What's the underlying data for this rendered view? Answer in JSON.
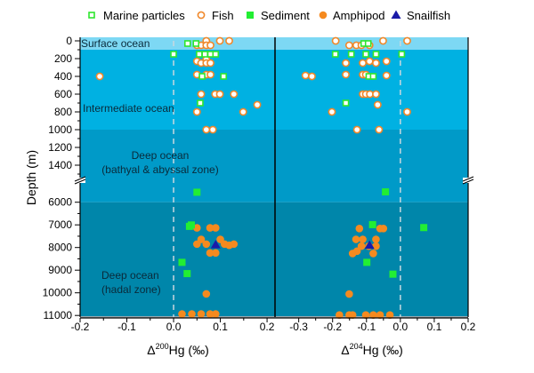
{
  "chart_data": {
    "type": "scatter",
    "legend": {
      "placement": "top",
      "entries": [
        {
          "key": "marine_particles",
          "label": "Marine particles",
          "marker": "hollow-square",
          "color": "#2ee62e"
        },
        {
          "key": "fish",
          "label": "Fish",
          "marker": "hollow-circle",
          "color": "#f0882a"
        },
        {
          "key": "sediment",
          "label": "Sediment",
          "marker": "filled-square",
          "color": "#22ee33"
        },
        {
          "key": "amphipod",
          "label": "Amphipod",
          "marker": "filled-circle",
          "color": "#f58a1f"
        },
        {
          "key": "snailfish",
          "label": "Snailfish",
          "marker": "filled-triangle",
          "color": "#1a1aa8"
        }
      ]
    },
    "ylabel": "Depth (m)",
    "y_axis": {
      "inverted": true,
      "broken": true,
      "upper_segment": [
        0,
        1500
      ],
      "lower_segment": [
        5500,
        11000
      ],
      "tick_labels_upper": [
        "0",
        "200",
        "400",
        "600",
        "800",
        "1000",
        "1200",
        "1400"
      ],
      "tick_labels_lower": [
        "6000",
        "7000",
        "8000",
        "9000",
        "10000",
        "11000"
      ]
    },
    "zones": [
      {
        "label": "Surface ocean",
        "range": [
          0,
          100
        ],
        "color": "#7dd8f4"
      },
      {
        "label": "Intermediate ocean",
        "range": [
          100,
          1000
        ],
        "color": "#00b1e2"
      },
      {
        "label": "Deep ocean",
        "label2": "(bathyal & abyssal zone)",
        "range": [
          1000,
          6000
        ],
        "color": "#009ac8"
      },
      {
        "label": "Deep ocean",
        "label2": "(hadal zone)",
        "range": [
          6000,
          11000
        ],
        "color": "#0086aa"
      }
    ],
    "panels": [
      {
        "xlabel_symbol": "Δ",
        "xlabel_sup": "200",
        "xlabel_rest": "Hg (‰)",
        "xlim": [
          -0.2,
          0.217
        ],
        "xticks": [
          -0.2,
          -0.1,
          0.0,
          0.1,
          0.2
        ],
        "xtick_labels": [
          "-0.2",
          "-0.1",
          "0.0",
          "0.1",
          "0.2"
        ],
        "reference_line": 0,
        "series": {
          "marine_particles": [
            [
              0.03,
              30
            ],
            [
              0.048,
              30
            ],
            [
              0.0,
              150
            ],
            [
              0.055,
              150
            ],
            [
              0.067,
              150
            ],
            [
              0.079,
              150
            ],
            [
              0.09,
              150
            ],
            [
              0.061,
              400
            ],
            [
              0.107,
              400
            ],
            [
              0.057,
              700
            ]
          ],
          "fish": [
            [
              0.07,
              0
            ],
            [
              0.099,
              0
            ],
            [
              0.119,
              0
            ],
            [
              0.05,
              50
            ],
            [
              0.059,
              50
            ],
            [
              0.07,
              50
            ],
            [
              0.079,
              50
            ],
            [
              0.05,
              230
            ],
            [
              0.07,
              210
            ],
            [
              0.059,
              250
            ],
            [
              0.07,
              250
            ],
            [
              0.079,
              250
            ],
            [
              -0.158,
              400
            ],
            [
              0.05,
              380
            ],
            [
              0.07,
              380
            ],
            [
              0.079,
              380
            ],
            [
              0.059,
              600
            ],
            [
              0.089,
              600
            ],
            [
              0.099,
              600
            ],
            [
              0.129,
              600
            ],
            [
              0.179,
              720
            ],
            [
              0.05,
              800
            ],
            [
              0.149,
              800
            ],
            [
              0.07,
              1000
            ],
            [
              0.084,
              1000
            ]
          ],
          "sediment": [
            [
              0.05,
              5560
            ],
            [
              0.034,
              7066
            ],
            [
              0.038,
              7004
            ],
            [
              0.018,
              8656
            ],
            [
              0.029,
              9152
            ]
          ],
          "amphipod": [
            [
              0.05,
              7133
            ],
            [
              0.078,
              7133
            ],
            [
              0.09,
              7133
            ],
            [
              0.059,
              7640
            ],
            [
              0.1,
              7640
            ],
            [
              0.05,
              7850
            ],
            [
              0.07,
              7850
            ],
            [
              0.109,
              7850
            ],
            [
              0.119,
              7900
            ],
            [
              0.129,
              7850
            ],
            [
              0.078,
              8240
            ],
            [
              0.09,
              8240
            ],
            [
              0.07,
              10050
            ],
            [
              0.018,
              10935
            ],
            [
              0.039,
              10935
            ],
            [
              0.059,
              10935
            ],
            [
              0.078,
              10935
            ],
            [
              0.09,
              10935
            ]
          ],
          "snailfish": [
            [
              0.09,
              7880
            ]
          ]
        }
      },
      {
        "xlabel_symbol": "Δ",
        "xlabel_sup": "204",
        "xlabel_rest": "Hg (‰)",
        "xlim": [
          -0.37,
          0.2
        ],
        "xticks": [
          -0.3,
          -0.2,
          -0.1,
          0.0,
          0.1,
          0.2
        ],
        "xtick_labels": [
          "-0.3",
          "-0.2",
          "-0.1",
          "0.0",
          "0.1",
          "0.2"
        ],
        "reference_line": 0,
        "series": {
          "marine_particles": [
            [
              -0.108,
              30
            ],
            [
              -0.095,
              30
            ],
            [
              -0.192,
              150
            ],
            [
              -0.145,
              150
            ],
            [
              -0.102,
              150
            ],
            [
              -0.072,
              150
            ],
            [
              0.004,
              150
            ],
            [
              -0.093,
              400
            ],
            [
              -0.08,
              400
            ],
            [
              -0.161,
              700
            ]
          ],
          "fish": [
            [
              -0.191,
              0
            ],
            [
              -0.051,
              0
            ],
            [
              0.02,
              0
            ],
            [
              -0.151,
              50
            ],
            [
              -0.13,
              50
            ],
            [
              -0.115,
              50
            ],
            [
              -0.091,
              50
            ],
            [
              -0.161,
              250
            ],
            [
              -0.111,
              250
            ],
            [
              -0.091,
              230
            ],
            [
              -0.072,
              250
            ],
            [
              -0.041,
              230
            ],
            [
              -0.28,
              390
            ],
            [
              -0.261,
              400
            ],
            [
              -0.161,
              380
            ],
            [
              -0.111,
              380
            ],
            [
              -0.102,
              380
            ],
            [
              -0.041,
              390
            ],
            [
              -0.111,
              600
            ],
            [
              -0.102,
              600
            ],
            [
              -0.09,
              600
            ],
            [
              -0.072,
              600
            ],
            [
              -0.067,
              720
            ],
            [
              -0.202,
              800
            ],
            [
              0.02,
              800
            ],
            [
              -0.128,
              1000
            ],
            [
              -0.063,
              1000
            ]
          ],
          "sediment": [
            [
              -0.044,
              5543
            ],
            [
              -0.082,
              6990
            ],
            [
              0.069,
              7120
            ],
            [
              -0.099,
              8656
            ],
            [
              -0.022,
              9176
            ]
          ],
          "amphipod": [
            [
              -0.121,
              7160
            ],
            [
              -0.06,
              7160
            ],
            [
              -0.05,
              7160
            ],
            [
              -0.131,
              7640
            ],
            [
              -0.111,
              7640
            ],
            [
              -0.072,
              7640
            ],
            [
              -0.115,
              7940
            ],
            [
              -0.093,
              7940
            ],
            [
              -0.072,
              7940
            ],
            [
              -0.141,
              8265
            ],
            [
              -0.128,
              8160
            ],
            [
              -0.08,
              8265
            ],
            [
              -0.151,
              10055
            ],
            [
              -0.18,
              10980
            ],
            [
              -0.151,
              10980
            ],
            [
              -0.141,
              10980
            ],
            [
              -0.102,
              10980
            ],
            [
              -0.08,
              10980
            ],
            [
              -0.06,
              10980
            ],
            [
              -0.031,
              10980
            ]
          ],
          "snailfish": [
            [
              -0.091,
              7900
            ]
          ]
        }
      }
    ]
  }
}
